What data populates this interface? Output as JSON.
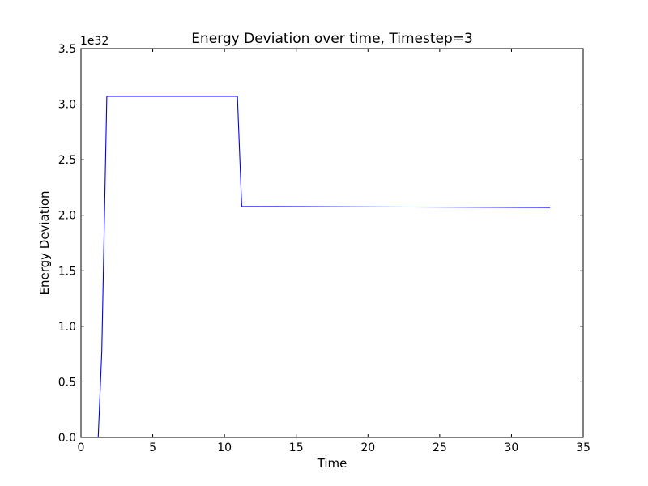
{
  "chart_data": {
    "type": "line",
    "title": "Energy Deviation over time, Timestep=3",
    "xlabel": "Time",
    "ylabel": "Energy Deviation",
    "y_offset_label": "1e32",
    "xlim": [
      0,
      35
    ],
    "ylim": [
      0,
      3.5
    ],
    "xticks": [
      0,
      5,
      10,
      15,
      20,
      25,
      30,
      35
    ],
    "xtick_labels": [
      "0",
      "5",
      "10",
      "15",
      "20",
      "25",
      "30",
      "35"
    ],
    "yticks": [
      0,
      0.5,
      1.0,
      1.5,
      2.0,
      2.5,
      3.0,
      3.5
    ],
    "ytick_labels": [
      "0.0",
      "0.5",
      "1.0",
      "1.5",
      "2.0",
      "2.5",
      "3.0",
      "3.5"
    ],
    "grid": false,
    "series": [
      {
        "color": "#0000ff",
        "x": [
          0,
          1.2,
          1.45,
          1.8,
          10.9,
          11.2,
          32.7
        ],
        "y": [
          0,
          0,
          0.78,
          3.07,
          3.07,
          2.08,
          2.07
        ]
      }
    ]
  }
}
